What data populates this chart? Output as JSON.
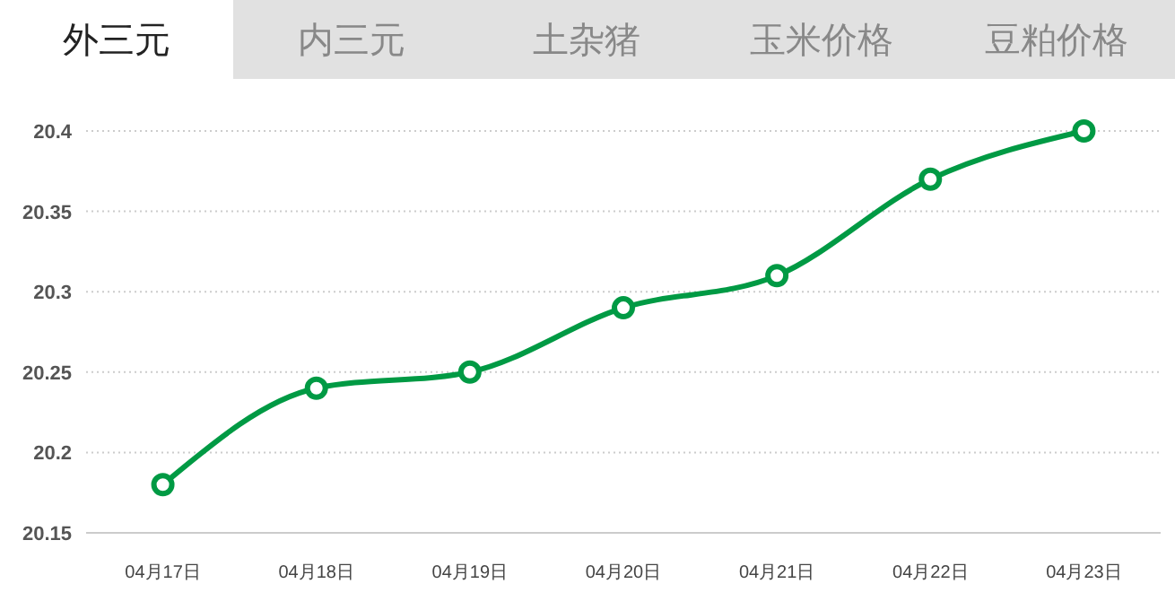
{
  "chart_data": {
    "type": "line",
    "title": "外三元",
    "annotations": [
      "内三元",
      "土杂猪",
      "玉米价格",
      "豆粕价格"
    ],
    "categories": [
      "04月17日",
      "04月18日",
      "04月19日",
      "04月20日",
      "04月21日",
      "04月22日",
      "04月23日"
    ],
    "series": [
      {
        "color": "#009a44",
        "values": [
          20.18,
          20.24,
          20.25,
          20.29,
          20.31,
          20.37,
          20.4
        ]
      }
    ],
    "ylim": [
      20.15,
      20.4
    ],
    "yticks": [
      20.15,
      20.2,
      20.25,
      20.3,
      20.35,
      20.4
    ],
    "grid": "y",
    "marker": "circle",
    "line_style": "solid"
  }
}
